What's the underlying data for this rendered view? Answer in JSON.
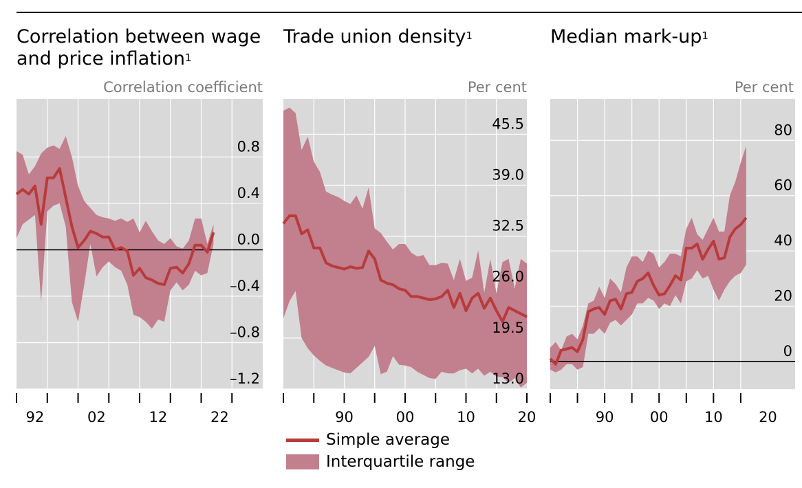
{
  "colors": {
    "line": "#b83b3b",
    "band": "#c27f8e",
    "plot_bg": "#d9d9d9",
    "grid": "#ffffff"
  },
  "legend": {
    "line_label": "Simple average",
    "band_label": "Interquartile range"
  },
  "chart_data": [
    {
      "type": "area",
      "title": "Correlation between wage and price inflation",
      "title_lines": [
        "Correlation between wage",
        "and price inflation"
      ],
      "footnote": "1",
      "ylabel": "Correlation coefficient",
      "xlim": [
        1989,
        2029
      ],
      "ylim": [
        -1.2,
        1.3
      ],
      "x_ticks": [
        89,
        94,
        99,
        104,
        109,
        114,
        119,
        124
      ],
      "x_tick_labels": [
        {
          "x": 92,
          "label": "92"
        },
        {
          "x": 102,
          "label": "02"
        },
        {
          "x": 112,
          "label": "12"
        },
        {
          "x": 122,
          "label": "22"
        }
      ],
      "y_ticks": [
        {
          "v": 0.8,
          "label": "0.8"
        },
        {
          "v": 0.4,
          "label": "0.4"
        },
        {
          "v": 0.0,
          "label": "0.0"
        },
        {
          "v": -0.4,
          "label": "–0.4"
        },
        {
          "v": -0.8,
          "label": "–0.8"
        },
        {
          "v": -1.2,
          "label": "–1.2"
        }
      ],
      "zero_line": 0,
      "series": [
        {
          "name": "Simple average",
          "x": [
            1989,
            1990,
            1991,
            1992,
            1993,
            1994,
            1995,
            1996,
            1997,
            1998,
            1999,
            2000,
            2001,
            2002,
            2003,
            2004,
            2005,
            2006,
            2007,
            2008,
            2009,
            2010,
            2011,
            2012,
            2013,
            2014,
            2015,
            2016,
            2017,
            2018,
            2019,
            2020,
            2021
          ],
          "y": [
            0.48,
            0.52,
            0.48,
            0.55,
            0.22,
            0.62,
            0.62,
            0.7,
            0.45,
            0.2,
            0.02,
            0.08,
            0.16,
            0.14,
            0.11,
            0.11,
            0.0,
            0.02,
            -0.01,
            -0.22,
            -0.16,
            -0.24,
            -0.26,
            -0.29,
            -0.3,
            -0.16,
            -0.15,
            -0.2,
            -0.12,
            0.04,
            0.04,
            -0.02,
            0.15
          ]
        },
        {
          "name": "Interquartile range",
          "x": [
            1989,
            1990,
            1991,
            1992,
            1993,
            1994,
            1995,
            1996,
            1997,
            1998,
            1999,
            2000,
            2001,
            2002,
            2003,
            2004,
            2005,
            2006,
            2007,
            2008,
            2009,
            2010,
            2011,
            2012,
            2013,
            2014,
            2015,
            2016,
            2017,
            2018,
            2019,
            2020,
            2021
          ],
          "upper": [
            0.85,
            0.82,
            0.65,
            0.72,
            0.83,
            0.88,
            0.9,
            0.87,
            0.98,
            0.8,
            0.55,
            0.42,
            0.36,
            0.3,
            0.28,
            0.27,
            0.25,
            0.27,
            0.24,
            0.27,
            0.15,
            0.25,
            0.16,
            0.08,
            0.05,
            0.1,
            0.03,
            0.01,
            0.08,
            0.27,
            0.27,
            0.05,
            0.22
          ],
          "lower": [
            0.1,
            0.22,
            0.26,
            0.3,
            -0.45,
            0.33,
            0.38,
            0.4,
            0.2,
            -0.45,
            -0.62,
            -0.3,
            0.05,
            -0.23,
            -0.15,
            -0.1,
            -0.15,
            -0.18,
            -0.3,
            -0.56,
            -0.58,
            -0.62,
            -0.68,
            -0.6,
            -0.62,
            -0.35,
            -0.28,
            -0.35,
            -0.3,
            -0.18,
            -0.22,
            -0.2,
            0.05
          ]
        }
      ]
    },
    {
      "type": "area",
      "title": "Trade union density",
      "title_lines": [
        "Trade union density"
      ],
      "footnote": "1",
      "ylabel": "Per cent",
      "xlim": [
        1980,
        2020
      ],
      "ylim": [
        13.0,
        50.0
      ],
      "x_ticks": [
        1980,
        1985,
        1990,
        1995,
        2000,
        2005,
        2010,
        2015,
        2020
      ],
      "x_tick_labels": [
        {
          "x": 1990,
          "label": "90"
        },
        {
          "x": 2000,
          "label": "00"
        },
        {
          "x": 2010,
          "label": "10"
        },
        {
          "x": 2020,
          "label": "20"
        }
      ],
      "y_ticks": [
        {
          "v": 45.5,
          "label": "45.5"
        },
        {
          "v": 39.0,
          "label": "39.0"
        },
        {
          "v": 32.5,
          "label": "32.5"
        },
        {
          "v": 26.0,
          "label": "26.0"
        },
        {
          "v": 19.5,
          "label": "19.5"
        },
        {
          "v": 13.0,
          "label": "13.0"
        }
      ],
      "zero_line": null,
      "series": [
        {
          "name": "Simple average",
          "x": [
            1980,
            1981,
            1982,
            1983,
            1984,
            1985,
            1986,
            1987,
            1988,
            1989,
            1990,
            1991,
            1992,
            1993,
            1994,
            1995,
            1996,
            1997,
            1998,
            1999,
            2000,
            2001,
            2002,
            2003,
            2004,
            2005,
            2006,
            2007,
            2008,
            2009,
            2010,
            2011,
            2012,
            2013,
            2014,
            2015,
            2016,
            2017,
            2018,
            2019,
            2020
          ],
          "y": [
            34.1,
            35.1,
            35.1,
            32.8,
            33.3,
            31.0,
            31.0,
            29.1,
            28.7,
            28.5,
            28.3,
            28.6,
            28.4,
            28.5,
            30.6,
            29.6,
            26.9,
            26.5,
            26.3,
            25.8,
            25.6,
            24.8,
            24.8,
            24.6,
            24.4,
            24.5,
            24.8,
            25.6,
            23.4,
            25.2,
            23.0,
            24.6,
            25.2,
            23.3,
            24.6,
            23.0,
            21.6,
            23.4,
            23.0,
            22.6,
            22.2
          ]
        },
        {
          "name": "Interquartile range",
          "x": [
            1980,
            1981,
            1982,
            1983,
            1984,
            1985,
            1986,
            1987,
            1988,
            1989,
            1990,
            1991,
            1992,
            1993,
            1994,
            1995,
            1996,
            1997,
            1998,
            1999,
            2000,
            2001,
            2002,
            2003,
            2004,
            2005,
            2006,
            2007,
            2008,
            2009,
            2010,
            2011,
            2012,
            2013,
            2014,
            2015,
            2016,
            2017,
            2018,
            2019,
            2020
          ],
          "upper": [
            48.5,
            48.9,
            48.2,
            43.5,
            45.2,
            42.0,
            40.7,
            38.2,
            37.8,
            37.5,
            37.0,
            36.6,
            37.7,
            36.0,
            38.7,
            33.5,
            32.9,
            31.8,
            30.8,
            31.5,
            31.5,
            30.4,
            29.9,
            30.1,
            28.8,
            28.8,
            29.1,
            29.0,
            26.9,
            29.6,
            26.8,
            27.2,
            30.7,
            25.3,
            29.6,
            25.2,
            29.2,
            29.6,
            25.8,
            29.6,
            29.0
          ],
          "lower": [
            22.0,
            24.2,
            25.5,
            19.5,
            18.2,
            17.3,
            16.6,
            16.0,
            15.7,
            15.4,
            15.1,
            15.0,
            15.7,
            16.4,
            17.1,
            18.5,
            14.9,
            15.2,
            17.2,
            16.1,
            16.0,
            15.8,
            15.2,
            14.8,
            14.4,
            14.3,
            15.2,
            15.0,
            15.0,
            15.4,
            15.6,
            15.0,
            15.6,
            14.7,
            15.2,
            14.6,
            14.5,
            13.8,
            14.4,
            13.2,
            13.8
          ]
        }
      ]
    },
    {
      "type": "area",
      "title": "Median mark-up",
      "title_lines": [
        "Median mark-up"
      ],
      "footnote": "1",
      "ylabel": "Per cent",
      "xlim": [
        1980,
        2025
      ],
      "ylim": [
        -10,
        95
      ],
      "x_ticks": [
        1980,
        1985,
        1990,
        1995,
        2000,
        2005,
        2010,
        2015
      ],
      "x_tick_labels": [
        {
          "x": 1990,
          "label": "90"
        },
        {
          "x": 2000,
          "label": "00"
        },
        {
          "x": 2010,
          "label": "10"
        },
        {
          "x": 2020,
          "label": "20"
        }
      ],
      "y_ticks": [
        {
          "v": 80,
          "label": "80"
        },
        {
          "v": 60,
          "label": "60"
        },
        {
          "v": 40,
          "label": "40"
        },
        {
          "v": 20,
          "label": "20"
        },
        {
          "v": 0,
          "label": "0"
        }
      ],
      "zero_line": 0,
      "series": [
        {
          "name": "Simple average",
          "x": [
            1980,
            1981,
            1982,
            1983,
            1984,
            1985,
            1986,
            1987,
            1988,
            1989,
            1990,
            1991,
            1992,
            1993,
            1994,
            1995,
            1996,
            1997,
            1998,
            1999,
            2000,
            2001,
            2002,
            2003,
            2004,
            2005,
            2006,
            2007,
            2008,
            2009,
            2010,
            2011,
            2012,
            2013,
            2014,
            2015,
            2016
          ],
          "y": [
            1,
            -1,
            4,
            4.5,
            5,
            3.5,
            8,
            18,
            19,
            19.5,
            17,
            22,
            22.5,
            19,
            24.5,
            25,
            29,
            30,
            32,
            27.5,
            24,
            24.5,
            27.5,
            31,
            29.5,
            41,
            41,
            42.5,
            37,
            40.5,
            43.5,
            37,
            37.5,
            45,
            48,
            49.5,
            52
          ]
        },
        {
          "name": "Interquartile range",
          "x": [
            1980,
            1981,
            1982,
            1983,
            1984,
            1985,
            1986,
            1987,
            1988,
            1989,
            1990,
            1991,
            1992,
            1993,
            1994,
            1995,
            1996,
            1997,
            1998,
            1999,
            2000,
            2001,
            2002,
            2003,
            2004,
            2005,
            2006,
            2007,
            2008,
            2009,
            2010,
            2011,
            2012,
            2013,
            2014,
            2015,
            2016
          ],
          "upper": [
            5,
            7,
            4,
            9,
            10,
            8,
            13,
            21,
            22,
            27,
            23,
            30,
            28,
            25,
            34,
            38,
            38,
            36,
            40,
            39,
            34,
            36,
            39,
            39,
            38,
            48,
            52,
            46,
            44,
            48,
            52,
            47,
            47,
            60,
            65,
            72,
            78
          ],
          "lower": [
            -3,
            -4,
            -3,
            -1,
            -1,
            -3,
            -2,
            10,
            10,
            12,
            10,
            14,
            15,
            13,
            15,
            17,
            21,
            21,
            23,
            22,
            19,
            21,
            20,
            24,
            21,
            29,
            30,
            33,
            30,
            31,
            26,
            22,
            26,
            29,
            31,
            32,
            35
          ]
        }
      ]
    }
  ]
}
